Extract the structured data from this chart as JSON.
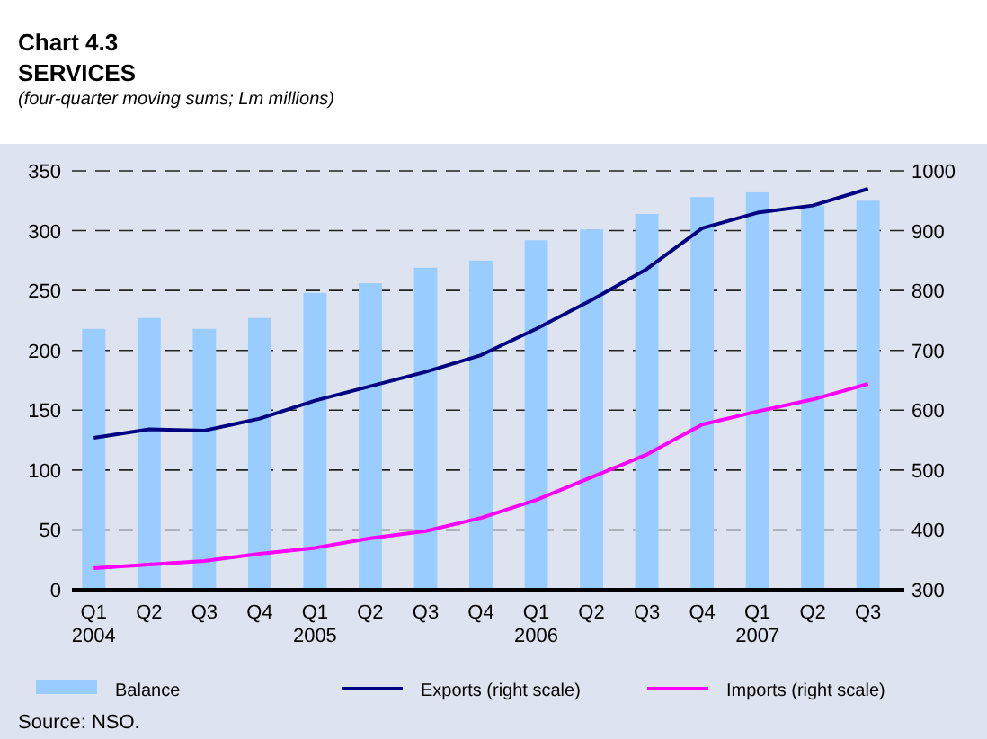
{
  "chart_data": {
    "type": "bar",
    "title": "Chart 4.3",
    "subtitle": "SERVICES",
    "annotations": [
      "(four-quarter moving sums; Lm millions)",
      "Source: NSO."
    ],
    "categories": [
      "Q1\n2004",
      "Q2",
      "Q3",
      "Q4",
      "Q1\n2005",
      "Q2",
      "Q3",
      "Q4",
      "Q1\n2006",
      "Q2",
      "Q3",
      "Q4",
      "Q1\n2007",
      "Q2",
      "Q3"
    ],
    "series": [
      {
        "name": "Balance",
        "color": "#99ccff",
        "values": [
          218,
          227,
          218,
          227,
          248,
          256,
          269,
          275,
          292,
          301,
          314,
          328,
          332,
          321,
          325
        ]
      },
      {
        "name": "Exports (right scale)",
        "type": "line",
        "axis": "y2",
        "color": "#000080",
        "values": [
          554,
          568,
          566,
          586,
          616,
          640,
          664,
          692,
          736,
          784,
          836,
          904,
          930,
          942,
          970
        ]
      },
      {
        "name": "Imports (right scale)",
        "type": "line",
        "axis": "y2",
        "color": "#ff00ff",
        "values": [
          336,
          342,
          348,
          360,
          370,
          386,
          398,
          420,
          450,
          488,
          526,
          576,
          598,
          618,
          644
        ]
      }
    ],
    "ylim": [
      0,
      350
    ],
    "yticks": [
      0,
      50,
      100,
      150,
      200,
      250,
      300,
      350
    ],
    "y2lim": [
      300,
      1000
    ],
    "y2ticks": [
      300,
      400,
      500,
      600,
      700,
      800,
      900,
      1000
    ],
    "grid": "y",
    "legend": "bottom",
    "line_style": "solid",
    "marker": "none"
  }
}
